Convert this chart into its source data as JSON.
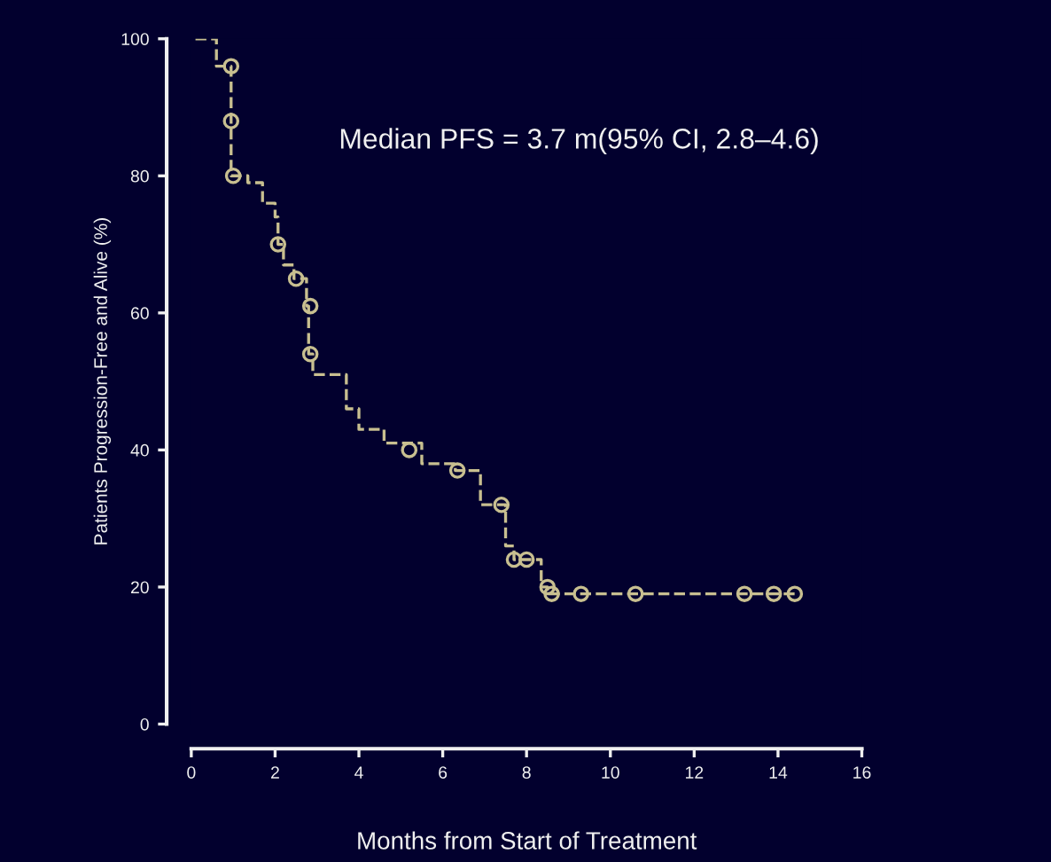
{
  "chart_data": {
    "type": "step",
    "xlabel": "Months from Start of Treatment",
    "ylabel": "Patients Progression-Free and Alive (%)",
    "annotations": [
      "Median PFS = 3.7 m(95% CI, 2.8–4.6)"
    ],
    "xlim": [
      0,
      16
    ],
    "ylim": [
      0,
      100
    ],
    "xticks": [
      0,
      2,
      4,
      6,
      8,
      10,
      12,
      14,
      16
    ],
    "yticks": [
      0,
      20,
      40,
      60,
      80,
      100
    ],
    "grid": false,
    "legend": false,
    "series": [
      {
        "color": "#c8bf90",
        "line_style": "dashed",
        "marker": "none",
        "x": [
          0.1,
          0.6,
          0.95,
          1.35,
          1.7,
          2.0,
          2.07,
          2.2,
          2.45,
          2.75,
          2.8,
          2.9,
          3.7,
          4.0,
          4.6,
          5.5,
          6.3,
          6.9,
          7.5,
          7.7,
          8.35,
          8.5,
          14.4
        ],
        "values": [
          100,
          96,
          80,
          79,
          76,
          74,
          70,
          67,
          65,
          61,
          54,
          51,
          46,
          43,
          41,
          38,
          37,
          32,
          26,
          24,
          20,
          19,
          19
        ]
      },
      {
        "type": "scatter",
        "color": "#c8bf90",
        "marker": "circle",
        "x": [
          0.95,
          0.95,
          1.0,
          2.07,
          2.5,
          2.84,
          2.84,
          5.2,
          6.35,
          7.4,
          7.7,
          8.0,
          8.5,
          8.6,
          9.3,
          10.6,
          13.2,
          13.9,
          14.4
        ],
        "values": [
          96,
          88,
          80,
          70,
          65,
          61,
          54,
          40,
          37,
          32,
          24,
          24,
          20,
          19,
          19,
          19,
          19,
          19,
          19
        ]
      }
    ]
  }
}
